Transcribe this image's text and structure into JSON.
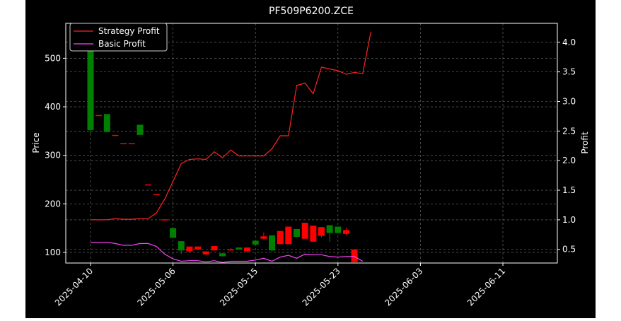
{
  "chart_data": {
    "type": "candlestick",
    "title": "PF509P6200.ZCE",
    "ylabel_left": "Price",
    "ylabel_right": "Profit",
    "price_ylim": [
      78,
      572
    ],
    "profit_ylim": [
      0.27,
      4.32
    ],
    "price_ticks": [
      100,
      200,
      300,
      400,
      500
    ],
    "profit_ticks": [
      0.5,
      1.0,
      1.5,
      2.0,
      2.5,
      3.0,
      3.5,
      4.0
    ],
    "x_ticks": [
      "2025-04-10",
      "2025-05-06",
      "2025-05-15",
      "2025-05-23",
      "2025-06-03",
      "2025-06-11"
    ],
    "x_tick_index": [
      0,
      10,
      20,
      30,
      40,
      50
    ],
    "grid": true,
    "legend_position": "top-left",
    "legend": [
      {
        "label": "Strategy Profit",
        "color": "#ff2222"
      },
      {
        "label": "Basic Profit",
        "color": "#ff44ff"
      }
    ],
    "colors": {
      "up": "#008000",
      "down": "#ff0000",
      "background": "#000000",
      "axes": "#ffffff"
    },
    "candles": [
      {
        "i": 0,
        "open": 352,
        "close": 572,
        "high": 572,
        "low": 343,
        "dir": "up"
      },
      {
        "i": 1,
        "open": 383,
        "close": 383,
        "high": 383,
        "low": 383,
        "dir": "down"
      },
      {
        "i": 2,
        "open": 348,
        "close": 385,
        "high": 385,
        "low": 348,
        "dir": "up"
      },
      {
        "i": 3,
        "open": 342,
        "close": 342,
        "high": 342,
        "low": 342,
        "dir": "down"
      },
      {
        "i": 4,
        "open": 325,
        "close": 325,
        "high": 325,
        "low": 325,
        "dir": "down"
      },
      {
        "i": 5,
        "open": 325,
        "close": 325,
        "high": 325,
        "low": 325,
        "dir": "down"
      },
      {
        "i": 6,
        "open": 342,
        "close": 363,
        "high": 363,
        "low": 342,
        "dir": "up"
      },
      {
        "i": 7,
        "open": 240,
        "close": 240,
        "high": 240,
        "low": 240,
        "dir": "down"
      },
      {
        "i": 8,
        "open": 220,
        "close": 220,
        "high": 220,
        "low": 220,
        "dir": "down"
      },
      {
        "i": 9,
        "open": 168,
        "close": 168,
        "high": 168,
        "low": 168,
        "dir": "down"
      },
      {
        "i": 10,
        "open": 130,
        "close": 150,
        "high": 150,
        "low": 130,
        "dir": "up"
      },
      {
        "i": 11,
        "open": 104,
        "close": 123,
        "high": 123,
        "low": 97,
        "dir": "up"
      },
      {
        "i": 12,
        "open": 112,
        "close": 102,
        "high": 112,
        "low": 100,
        "dir": "down"
      },
      {
        "i": 13,
        "open": 112,
        "close": 106,
        "high": 112,
        "low": 106,
        "dir": "down"
      },
      {
        "i": 14,
        "open": 102,
        "close": 96,
        "high": 102,
        "low": 94,
        "dir": "down"
      },
      {
        "i": 15,
        "open": 113,
        "close": 104,
        "high": 113,
        "low": 104,
        "dir": "down"
      },
      {
        "i": 16,
        "open": 92,
        "close": 98,
        "high": 98,
        "low": 92,
        "dir": "up"
      },
      {
        "i": 17,
        "open": 106,
        "close": 104,
        "high": 109,
        "low": 104,
        "dir": "down"
      },
      {
        "i": 18,
        "open": 106,
        "close": 110,
        "high": 110,
        "low": 106,
        "dir": "up"
      },
      {
        "i": 19,
        "open": 110,
        "close": 102,
        "high": 110,
        "low": 99,
        "dir": "down"
      },
      {
        "i": 20,
        "open": 116,
        "close": 124,
        "high": 124,
        "low": 116,
        "dir": "up"
      },
      {
        "i": 21,
        "open": 133,
        "close": 128,
        "high": 141,
        "low": 127,
        "dir": "down"
      },
      {
        "i": 22,
        "open": 104,
        "close": 135,
        "high": 135,
        "low": 102,
        "dir": "up"
      },
      {
        "i": 23,
        "open": 144,
        "close": 117,
        "high": 144,
        "low": 117,
        "dir": "down"
      },
      {
        "i": 24,
        "open": 153,
        "close": 117,
        "high": 153,
        "low": 117,
        "dir": "down"
      },
      {
        "i": 25,
        "open": 132,
        "close": 148,
        "high": 148,
        "low": 132,
        "dir": "up"
      },
      {
        "i": 26,
        "open": 161,
        "close": 128,
        "high": 161,
        "low": 128,
        "dir": "down"
      },
      {
        "i": 27,
        "open": 155,
        "close": 122,
        "high": 155,
        "low": 122,
        "dir": "down"
      },
      {
        "i": 28,
        "open": 152,
        "close": 134,
        "high": 152,
        "low": 131,
        "dir": "down"
      },
      {
        "i": 29,
        "open": 140,
        "close": 156,
        "high": 156,
        "low": 122,
        "dir": "up"
      },
      {
        "i": 30,
        "open": 140,
        "close": 153,
        "high": 153,
        "low": 140,
        "dir": "up"
      },
      {
        "i": 31,
        "open": 146,
        "close": 138,
        "high": 151,
        "low": 134,
        "dir": "down"
      },
      {
        "i": 32,
        "open": 106,
        "close": 80,
        "high": 106,
        "low": 80,
        "dir": "down"
      }
    ],
    "strategy_profit": [
      {
        "i": 0,
        "v": 1.0
      },
      {
        "i": 1,
        "v": 1.0
      },
      {
        "i": 2,
        "v": 1.0
      },
      {
        "i": 3,
        "v": 1.02
      },
      {
        "i": 4,
        "v": 1.01
      },
      {
        "i": 5,
        "v": 1.01
      },
      {
        "i": 6,
        "v": 1.02
      },
      {
        "i": 7,
        "v": 1.02
      },
      {
        "i": 8,
        "v": 1.12
      },
      {
        "i": 9,
        "v": 1.35
      },
      {
        "i": 10,
        "v": 1.65
      },
      {
        "i": 11,
        "v": 1.95
      },
      {
        "i": 12,
        "v": 2.02
      },
      {
        "i": 13,
        "v": 2.03
      },
      {
        "i": 14,
        "v": 2.02
      },
      {
        "i": 15,
        "v": 2.15
      },
      {
        "i": 16,
        "v": 2.05
      },
      {
        "i": 17,
        "v": 2.18
      },
      {
        "i": 18,
        "v": 2.08
      },
      {
        "i": 19,
        "v": 2.08
      },
      {
        "i": 20,
        "v": 2.08
      },
      {
        "i": 21,
        "v": 2.08
      },
      {
        "i": 22,
        "v": 2.2
      },
      {
        "i": 23,
        "v": 2.42
      },
      {
        "i": 24,
        "v": 2.42
      },
      {
        "i": 25,
        "v": 3.27
      },
      {
        "i": 26,
        "v": 3.31
      },
      {
        "i": 27,
        "v": 3.13
      },
      {
        "i": 28,
        "v": 3.58
      },
      {
        "i": 29,
        "v": 3.55
      },
      {
        "i": 30,
        "v": 3.52
      },
      {
        "i": 31,
        "v": 3.46
      },
      {
        "i": 32,
        "v": 3.49
      },
      {
        "i": 33,
        "v": 3.47
      },
      {
        "i": 34,
        "v": 4.18
      }
    ],
    "basic_profit": [
      {
        "i": 0,
        "v": 0.62
      },
      {
        "i": 1,
        "v": 0.62
      },
      {
        "i": 2,
        "v": 0.62
      },
      {
        "i": 3,
        "v": 0.6
      },
      {
        "i": 4,
        "v": 0.57
      },
      {
        "i": 5,
        "v": 0.57
      },
      {
        "i": 6,
        "v": 0.6
      },
      {
        "i": 7,
        "v": 0.6
      },
      {
        "i": 8,
        "v": 0.55
      },
      {
        "i": 9,
        "v": 0.42
      },
      {
        "i": 10,
        "v": 0.34
      },
      {
        "i": 11,
        "v": 0.3
      },
      {
        "i": 12,
        "v": 0.31
      },
      {
        "i": 13,
        "v": 0.31
      },
      {
        "i": 14,
        "v": 0.29
      },
      {
        "i": 15,
        "v": 0.31
      },
      {
        "i": 16,
        "v": 0.28
      },
      {
        "i": 17,
        "v": 0.3
      },
      {
        "i": 18,
        "v": 0.3
      },
      {
        "i": 19,
        "v": 0.3
      },
      {
        "i": 20,
        "v": 0.32
      },
      {
        "i": 21,
        "v": 0.35
      },
      {
        "i": 22,
        "v": 0.3
      },
      {
        "i": 23,
        "v": 0.37
      },
      {
        "i": 24,
        "v": 0.4
      },
      {
        "i": 25,
        "v": 0.35
      },
      {
        "i": 26,
        "v": 0.42
      },
      {
        "i": 27,
        "v": 0.41
      },
      {
        "i": 28,
        "v": 0.41
      },
      {
        "i": 29,
        "v": 0.38
      },
      {
        "i": 30,
        "v": 0.37
      },
      {
        "i": 31,
        "v": 0.38
      },
      {
        "i": 32,
        "v": 0.38
      },
      {
        "i": 33,
        "v": 0.3
      }
    ]
  }
}
